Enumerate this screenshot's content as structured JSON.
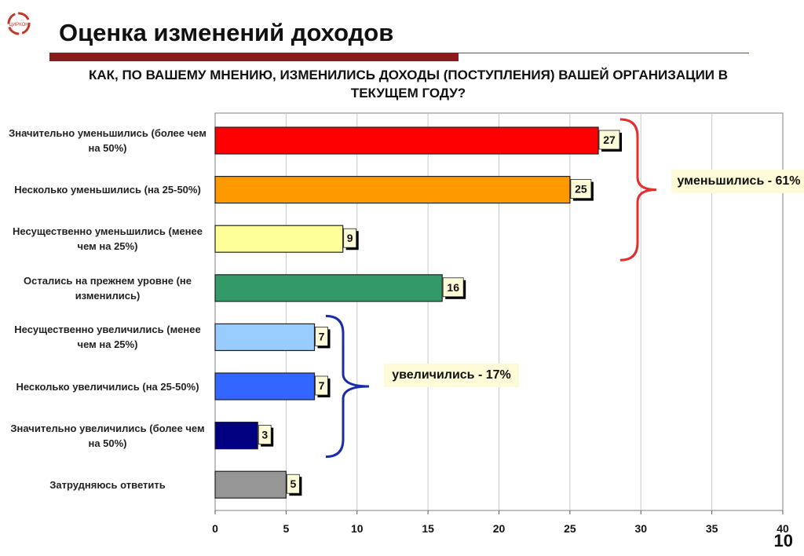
{
  "header": {
    "title": "Оценка изменений доходов",
    "question": "КАК, ПО ВАШЕМУ МНЕНИЮ, ИЗМЕНИЛИСЬ ДОХОДЫ (ПОСТУПЛЕНИЯ) ВАШЕЙ ОРГАНИЗАЦИИ В ТЕКУЩЕМ ГОДУ?",
    "logo_text": "ЦИРКОН"
  },
  "chart_data": {
    "type": "bar",
    "orientation": "horizontal",
    "title": "",
    "xlabel": "",
    "ylabel": "",
    "xlim": [
      0,
      40
    ],
    "xticks": [
      0,
      5,
      10,
      15,
      20,
      25,
      30,
      35,
      40
    ],
    "grid": "vertical",
    "categories": [
      "Значительно уменьшились (более чем на 50%)",
      "Несколько уменьшились (на 25-50%)",
      "Несущественно уменьшились (менее чем на 25%)",
      "Остались на прежнем уровне (не изменились)",
      "Несущественно увеличились (менее чем на 25%)",
      "Несколько увеличились (на 25-50%)",
      "Значительно увеличились (более чем на 50%)",
      "Затрудняюсь ответить"
    ],
    "values": [
      27,
      25,
      9,
      16,
      7,
      7,
      3,
      5
    ],
    "colors": [
      "#ff0000",
      "#ff9900",
      "#ffff99",
      "#339966",
      "#99ccff",
      "#3366ff",
      "#000080",
      "#969696"
    ],
    "annotations": [
      {
        "text": "уменьшились - 61%",
        "categories": [
          0,
          1,
          2
        ],
        "color": "#e03030"
      },
      {
        "text": "увеличились - 17%",
        "categories": [
          4,
          5,
          6
        ],
        "color": "#1a2ea8"
      }
    ]
  },
  "page": {
    "number": "10"
  }
}
